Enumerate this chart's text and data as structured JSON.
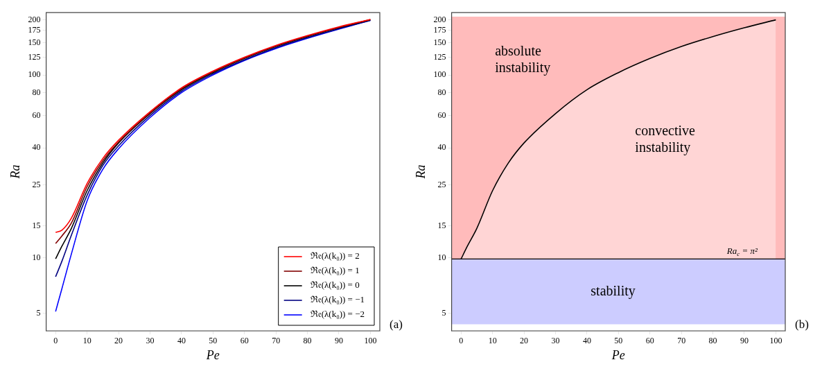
{
  "chart_data": [
    {
      "type": "line",
      "xlabel": "Pe",
      "ylabel": "Ra",
      "log": "y",
      "grid": false,
      "legend": "bottom right",
      "x": [
        0,
        2,
        5,
        10,
        15,
        20,
        30,
        40,
        50,
        60,
        70,
        80,
        90,
        100
      ],
      "xlim": [
        -3,
        103
      ],
      "xticks": [
        0,
        10,
        20,
        30,
        40,
        50,
        60,
        70,
        80,
        90,
        100
      ],
      "ylim": [
        4,
        219
      ],
      "yticks": [
        5,
        10,
        15,
        25,
        40,
        60,
        80,
        100,
        125,
        150,
        175,
        200
      ],
      "annotations": [
        "(a)"
      ],
      "series": [
        {
          "name": "ℜ𝔢(λ(k₀)) = 2",
          "color": "#ff0000",
          "values": [
            13.8,
            14.2,
            16.5,
            25.5,
            35,
            44,
            63,
            85,
            105,
            125,
            145,
            164,
            183,
            201
          ]
        },
        {
          "name": "ℜ𝔢(λ(k₀)) = 1",
          "color": "#800000",
          "values": [
            12,
            13.2,
            15.5,
            24.5,
            34,
            43,
            62,
            84,
            104,
            124,
            144,
            163,
            182,
            200.5
          ]
        },
        {
          "name": "ℜ𝔢(λ(k₀)) = 0",
          "color": "#000000",
          "values": [
            9.9,
            11.6,
            14.5,
            23.3,
            33,
            42.5,
            61.5,
            83,
            103,
            123,
            143,
            162,
            181,
            200
          ]
        },
        {
          "name": "ℜ𝔢(λ(k₀)) = −1",
          "color": "#000080",
          "values": [
            7.9,
            9.6,
            13.3,
            22,
            32,
            41,
            60,
            81.5,
            101.5,
            121,
            141,
            160,
            179,
            199
          ]
        },
        {
          "name": "ℜ𝔢(λ(k₀)) = −2",
          "color": "#0000ff",
          "values": [
            5.1,
            6.8,
            10.5,
            20.5,
            30.5,
            39.5,
            58.5,
            80,
            100,
            120,
            139.5,
            158.5,
            178,
            198.5
          ]
        }
      ]
    },
    {
      "type": "line",
      "xlabel": "Pe",
      "ylabel": "Ra",
      "log": "y",
      "grid": false,
      "x": [
        0,
        2,
        5,
        10,
        15,
        20,
        30,
        40,
        50,
        60,
        70,
        80,
        90,
        100
      ],
      "xlim": [
        -3,
        103
      ],
      "xticks": [
        0,
        10,
        20,
        30,
        40,
        50,
        60,
        70,
        80,
        90,
        100
      ],
      "ylim": [
        4,
        219
      ],
      "yticks": [
        5,
        10,
        15,
        25,
        40,
        60,
        80,
        100,
        125,
        150,
        175,
        200
      ],
      "annotations": [
        "(b)",
        "absolute instability",
        "convective instability"
      ],
      "bands": [
        {
          "axis": "y",
          "from": 4.35,
          "to": 9.87,
          "label": "stability",
          "color": "#ccccff"
        },
        {
          "axis": "y",
          "from": 9.87,
          "to": 208,
          "color": "#ffbbbb"
        }
      ],
      "ref_lines": [
        {
          "axis": "y",
          "value": 9.87,
          "label": "Ra$_{c}$ = π²",
          "color": "#000000"
        }
      ],
      "series": [
        {
          "type": "area",
          "color": "#ffd5d5",
          "values": [
            9.87,
            11.6,
            14.5,
            23.3,
            33,
            42.5,
            61.5,
            83,
            103,
            123,
            143,
            162,
            181,
            200
          ]
        }
      ]
    }
  ]
}
